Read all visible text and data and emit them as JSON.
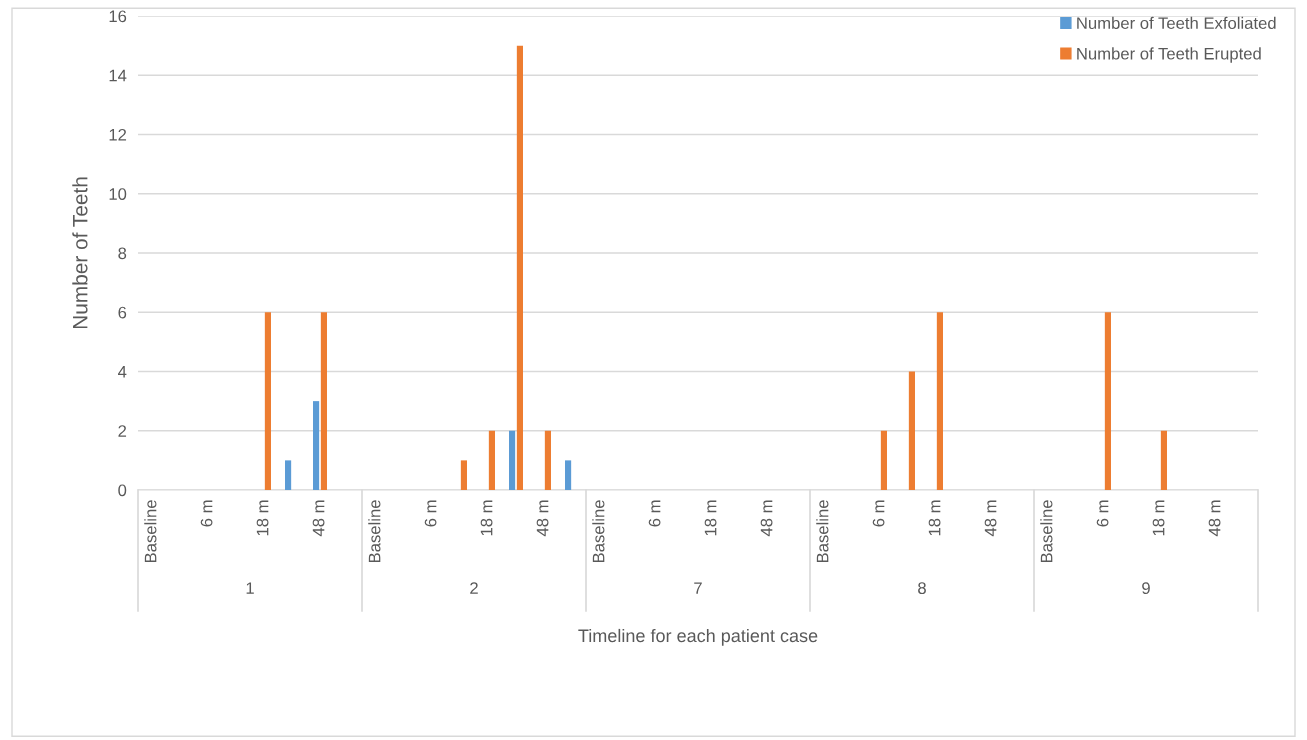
{
  "chart_data": {
    "type": "bar",
    "xlabel": "Timeline for each patient case",
    "ylabel": "Number of Teeth",
    "categories": [
      "Baseline",
      null,
      "6 m",
      null,
      "18 m",
      null,
      "48 m",
      null,
      "Baseline",
      null,
      "6 m",
      null,
      "18 m",
      null,
      "48 m",
      null,
      "Baseline",
      null,
      "6 m",
      null,
      "18 m",
      null,
      "48 m",
      null,
      "Baseline",
      null,
      "6 m",
      null,
      "18 m",
      null,
      "48 m",
      null,
      "Baseline",
      null,
      "6 m",
      null,
      "18 m",
      null,
      "48 m",
      null
    ],
    "series": [
      {
        "name": "Number of Teeth Exfoliated",
        "color": "#5b9bd5",
        "values": [
          null,
          null,
          null,
          null,
          null,
          1,
          3,
          null,
          null,
          null,
          null,
          null,
          null,
          2,
          null,
          1,
          null,
          null,
          null,
          null,
          null,
          null,
          null,
          null,
          null,
          null,
          null,
          null,
          null,
          null,
          null,
          null,
          null,
          null,
          null,
          null,
          null,
          null,
          null,
          null
        ]
      },
      {
        "name": "Number of Teeth Erupted",
        "color": "#ed7d31",
        "values": [
          null,
          null,
          null,
          null,
          6,
          null,
          6,
          null,
          null,
          null,
          null,
          1,
          2,
          15,
          2,
          null,
          null,
          null,
          null,
          null,
          null,
          null,
          null,
          null,
          null,
          null,
          2,
          4,
          6,
          null,
          null,
          null,
          null,
          null,
          6,
          null,
          2,
          null,
          null,
          null
        ]
      }
    ],
    "annotations": [
      "1",
      "2",
      "7",
      "8",
      "9"
    ],
    "ylim": [
      0,
      16
    ],
    "yticks": [
      0,
      2,
      4,
      6,
      8,
      10,
      12,
      14,
      16
    ],
    "grid": "y",
    "legend": "top right"
  }
}
